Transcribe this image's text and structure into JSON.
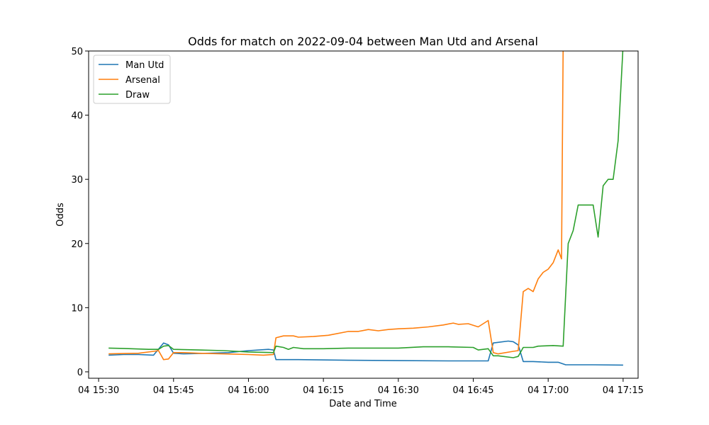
{
  "chart_data": {
    "type": "line",
    "title": "Odds for match on 2022-09-04 between Man Utd and Arsenal",
    "xlabel": "Date and Time",
    "ylabel": "Odds",
    "ylim": [
      -1,
      50
    ],
    "xlim": [
      "2022-09-04 15:28:00",
      "2022-09-04 17:18:00"
    ],
    "x_ticks": [
      {
        "t": "2022-09-04 15:30:00",
        "label": "04 15:30"
      },
      {
        "t": "2022-09-04 15:45:00",
        "label": "04 15:45"
      },
      {
        "t": "2022-09-04 16:00:00",
        "label": "04 16:00"
      },
      {
        "t": "2022-09-04 16:15:00",
        "label": "04 16:15"
      },
      {
        "t": "2022-09-04 16:30:00",
        "label": "04 16:30"
      },
      {
        "t": "2022-09-04 16:45:00",
        "label": "04 16:45"
      },
      {
        "t": "2022-09-04 17:00:00",
        "label": "04 17:00"
      },
      {
        "t": "2022-09-04 17:15:00",
        "label": "04 17:15"
      }
    ],
    "y_ticks": [
      0,
      10,
      20,
      30,
      40,
      50
    ],
    "grid": false,
    "legend_position": "top-left",
    "series": [
      {
        "name": "Man Utd",
        "color": "#1f77b4",
        "points": [
          [
            "2022-09-04 15:32:00",
            2.6
          ],
          [
            "2022-09-04 15:35:00",
            2.7
          ],
          [
            "2022-09-04 15:38:00",
            2.7
          ],
          [
            "2022-09-04 15:41:00",
            2.6
          ],
          [
            "2022-09-04 15:43:00",
            4.5
          ],
          [
            "2022-09-04 15:44:00",
            4.2
          ],
          [
            "2022-09-04 15:45:00",
            2.9
          ],
          [
            "2022-09-04 15:47:00",
            2.8
          ],
          [
            "2022-09-04 15:52:00",
            2.9
          ],
          [
            "2022-09-04 15:56:00",
            3.0
          ],
          [
            "2022-09-04 16:00:00",
            3.3
          ],
          [
            "2022-09-04 16:04:00",
            3.5
          ],
          [
            "2022-09-04 16:05:00",
            3.4
          ],
          [
            "2022-09-04 16:05:30",
            1.9
          ],
          [
            "2022-09-04 16:10:00",
            1.9
          ],
          [
            "2022-09-04 16:20:00",
            1.8
          ],
          [
            "2022-09-04 16:30:00",
            1.75
          ],
          [
            "2022-09-04 16:40:00",
            1.7
          ],
          [
            "2022-09-04 16:48:00",
            1.7
          ],
          [
            "2022-09-04 16:49:00",
            4.5
          ],
          [
            "2022-09-04 16:50:00",
            4.6
          ],
          [
            "2022-09-04 16:52:00",
            4.8
          ],
          [
            "2022-09-04 16:53:00",
            4.7
          ],
          [
            "2022-09-04 16:54:00",
            4.2
          ],
          [
            "2022-09-04 16:55:00",
            1.6
          ],
          [
            "2022-09-04 16:57:00",
            1.6
          ],
          [
            "2022-09-04 17:00:00",
            1.5
          ],
          [
            "2022-09-04 17:02:00",
            1.5
          ],
          [
            "2022-09-04 17:03:30",
            1.1
          ],
          [
            "2022-09-04 17:09:00",
            1.1
          ],
          [
            "2022-09-04 17:15:00",
            1.05
          ]
        ]
      },
      {
        "name": "Arsenal",
        "color": "#ff7f0e",
        "points": [
          [
            "2022-09-04 15:32:00",
            2.8
          ],
          [
            "2022-09-04 15:35:00",
            2.85
          ],
          [
            "2022-09-04 15:38:00",
            2.9
          ],
          [
            "2022-09-04 15:41:00",
            3.2
          ],
          [
            "2022-09-04 15:42:00",
            3.3
          ],
          [
            "2022-09-04 15:43:00",
            1.9
          ],
          [
            "2022-09-04 15:44:00",
            2.0
          ],
          [
            "2022-09-04 15:45:00",
            3.0
          ],
          [
            "2022-09-04 15:47:00",
            3.0
          ],
          [
            "2022-09-04 15:50:00",
            2.9
          ],
          [
            "2022-09-04 15:55:00",
            2.8
          ],
          [
            "2022-09-04 16:00:00",
            2.7
          ],
          [
            "2022-09-04 16:03:00",
            2.6
          ],
          [
            "2022-09-04 16:05:00",
            2.7
          ],
          [
            "2022-09-04 16:05:30",
            5.3
          ],
          [
            "2022-09-04 16:07:00",
            5.6
          ],
          [
            "2022-09-04 16:09:00",
            5.6
          ],
          [
            "2022-09-04 16:10:00",
            5.4
          ],
          [
            "2022-09-04 16:13:00",
            5.5
          ],
          [
            "2022-09-04 16:16:00",
            5.7
          ],
          [
            "2022-09-04 16:20:00",
            6.3
          ],
          [
            "2022-09-04 16:22:00",
            6.3
          ],
          [
            "2022-09-04 16:24:00",
            6.6
          ],
          [
            "2022-09-04 16:26:00",
            6.4
          ],
          [
            "2022-09-04 16:28:00",
            6.6
          ],
          [
            "2022-09-04 16:30:00",
            6.7
          ],
          [
            "2022-09-04 16:33:00",
            6.8
          ],
          [
            "2022-09-04 16:36:00",
            7.0
          ],
          [
            "2022-09-04 16:39:00",
            7.3
          ],
          [
            "2022-09-04 16:41:00",
            7.6
          ],
          [
            "2022-09-04 16:42:00",
            7.4
          ],
          [
            "2022-09-04 16:44:00",
            7.5
          ],
          [
            "2022-09-04 16:46:00",
            7.0
          ],
          [
            "2022-09-04 16:48:00",
            8.0
          ],
          [
            "2022-09-04 16:49:00",
            3.0
          ],
          [
            "2022-09-04 16:50:00",
            2.8
          ],
          [
            "2022-09-04 16:53:00",
            3.2
          ],
          [
            "2022-09-04 16:54:00",
            3.3
          ],
          [
            "2022-09-04 16:55:00",
            12.5
          ],
          [
            "2022-09-04 16:56:00",
            13.0
          ],
          [
            "2022-09-04 16:57:00",
            12.5
          ],
          [
            "2022-09-04 16:58:00",
            14.5
          ],
          [
            "2022-09-04 16:59:00",
            15.5
          ],
          [
            "2022-09-04 17:00:00",
            16.0
          ],
          [
            "2022-09-04 17:01:00",
            17.0
          ],
          [
            "2022-09-04 17:02:00",
            19.0
          ],
          [
            "2022-09-04 17:02:40",
            17.6
          ],
          [
            "2022-09-04 17:03:00",
            51.0
          ]
        ]
      },
      {
        "name": "Draw",
        "color": "#2ca02c",
        "points": [
          [
            "2022-09-04 15:32:00",
            3.7
          ],
          [
            "2022-09-04 15:35:00",
            3.65
          ],
          [
            "2022-09-04 15:40:00",
            3.5
          ],
          [
            "2022-09-04 15:42:00",
            3.5
          ],
          [
            "2022-09-04 15:43:00",
            4.0
          ],
          [
            "2022-09-04 15:44:00",
            4.1
          ],
          [
            "2022-09-04 15:45:00",
            3.5
          ],
          [
            "2022-09-04 15:50:00",
            3.4
          ],
          [
            "2022-09-04 15:55:00",
            3.3
          ],
          [
            "2022-09-04 16:00:00",
            3.1
          ],
          [
            "2022-09-04 16:05:00",
            3.0
          ],
          [
            "2022-09-04 16:05:30",
            4.0
          ],
          [
            "2022-09-04 16:07:00",
            3.8
          ],
          [
            "2022-09-04 16:08:00",
            3.5
          ],
          [
            "2022-09-04 16:09:00",
            3.8
          ],
          [
            "2022-09-04 16:11:00",
            3.6
          ],
          [
            "2022-09-04 16:15:00",
            3.6
          ],
          [
            "2022-09-04 16:20:00",
            3.7
          ],
          [
            "2022-09-04 16:25:00",
            3.7
          ],
          [
            "2022-09-04 16:30:00",
            3.7
          ],
          [
            "2022-09-04 16:35:00",
            3.9
          ],
          [
            "2022-09-04 16:40:00",
            3.9
          ],
          [
            "2022-09-04 16:45:00",
            3.8
          ],
          [
            "2022-09-04 16:46:00",
            3.4
          ],
          [
            "2022-09-04 16:48:00",
            3.6
          ],
          [
            "2022-09-04 16:49:00",
            2.5
          ],
          [
            "2022-09-04 16:50:00",
            2.5
          ],
          [
            "2022-09-04 16:53:00",
            2.2
          ],
          [
            "2022-09-04 16:54:00",
            2.4
          ],
          [
            "2022-09-04 16:55:00",
            3.8
          ],
          [
            "2022-09-04 16:57:00",
            3.8
          ],
          [
            "2022-09-04 16:58:00",
            4.0
          ],
          [
            "2022-09-04 17:01:00",
            4.1
          ],
          [
            "2022-09-04 17:03:00",
            4.0
          ],
          [
            "2022-09-04 17:04:00",
            20.0
          ],
          [
            "2022-09-04 17:05:00",
            22.0
          ],
          [
            "2022-09-04 17:06:00",
            26.0
          ],
          [
            "2022-09-04 17:09:00",
            26.0
          ],
          [
            "2022-09-04 17:10:00",
            21.0
          ],
          [
            "2022-09-04 17:11:00",
            29.0
          ],
          [
            "2022-09-04 17:12:00",
            30.0
          ],
          [
            "2022-09-04 17:13:00",
            30.0
          ],
          [
            "2022-09-04 17:14:00",
            36.0
          ],
          [
            "2022-09-04 17:15:00",
            51.0
          ]
        ]
      }
    ]
  }
}
